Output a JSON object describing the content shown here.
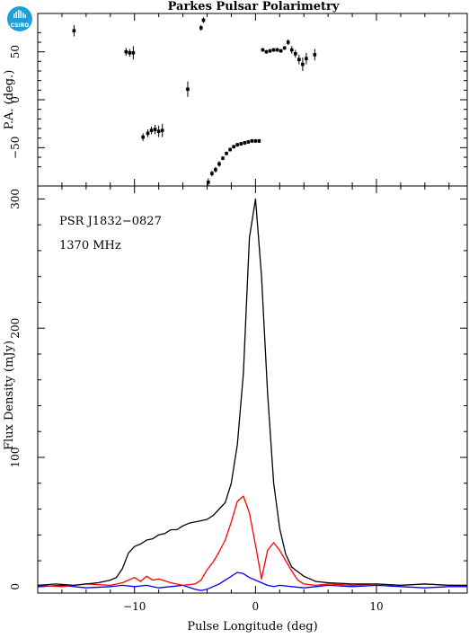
{
  "title": "Parkes Pulsar Polarimetry",
  "logo_text": "CSIRO",
  "colors": {
    "total_intensity": "#000000",
    "linear_polarization": "#ff0000",
    "circular_polarization": "#0000ff",
    "logo": "#1e9fd6"
  },
  "chart_data": [
    {
      "type": "scatter",
      "ylabel": "P.A. (deg.)",
      "xlim": [
        -18,
        17.5
      ],
      "ylim": [
        -90,
        90
      ],
      "yticks": [
        50,
        0,
        -50
      ],
      "ytick_labels": [
        "50",
        "0",
        "−50"
      ],
      "grid": false,
      "x": [
        -15,
        -10.7,
        -10.4,
        -10.1,
        -9.3,
        -8.9,
        -8.6,
        -8.3,
        -8.0,
        -7.7,
        -5.6,
        -4.5,
        -4.3,
        -3.9,
        -3.6,
        -3.3,
        -3.0,
        -2.7,
        -2.4,
        -2.1,
        -1.8,
        -1.5,
        -1.2,
        -0.9,
        -0.6,
        -0.3,
        0.0,
        0.3,
        0.6,
        0.9,
        1.2,
        1.5,
        1.8,
        2.1,
        2.4,
        2.7,
        3.0,
        3.3,
        3.6,
        3.9,
        4.2,
        4.9
      ],
      "y": [
        72,
        50,
        49,
        49,
        -39,
        -35,
        -32,
        -31,
        -33,
        -32,
        11,
        75,
        83,
        -86,
        -77,
        -73,
        -67,
        -61,
        -56,
        -52,
        -49,
        -47,
        -46,
        -45,
        -44,
        -43,
        -43,
        -43,
        52,
        50,
        51,
        52,
        52,
        51,
        54,
        60,
        52,
        48,
        42,
        37,
        43,
        47
      ],
      "yerr": [
        6,
        4,
        4,
        7,
        4,
        4,
        4,
        5,
        6,
        7,
        8,
        3,
        3,
        4,
        3,
        3,
        3,
        2,
        2,
        2,
        2,
        2,
        2,
        2,
        2,
        2,
        2,
        2,
        2,
        2,
        2,
        2,
        2,
        2,
        2,
        3,
        4,
        4,
        5,
        7,
        6,
        6
      ]
    },
    {
      "type": "line",
      "xlabel": "Pulse Longitude (deg)",
      "ylabel": "Flux Density (mJy)",
      "xlim": [
        -18,
        17.5
      ],
      "ylim": [
        -5,
        310
      ],
      "xticks": [
        -10,
        0,
        10
      ],
      "xtick_labels": [
        "−10",
        "0",
        "10"
      ],
      "yticks": [
        0,
        100,
        200,
        300
      ],
      "ytick_labels": [
        "0",
        "100",
        "200",
        "300"
      ],
      "annotations": [
        "PSR J1832−0827",
        "1370 MHz"
      ],
      "grid": false,
      "series": [
        {
          "color": "#000000",
          "x": [
            -18,
            -16.5,
            -15,
            -14,
            -13,
            -12,
            -11.5,
            -11,
            -10.5,
            -10,
            -9.5,
            -9,
            -8.5,
            -8,
            -7.5,
            -7,
            -6.5,
            -6,
            -5.5,
            -5,
            -4.5,
            -4,
            -3.5,
            -3,
            -2.5,
            -2,
            -1.5,
            -1,
            -0.5,
            0,
            0.5,
            1,
            1.5,
            2,
            2.5,
            3,
            4,
            5,
            6,
            8,
            10,
            12,
            14,
            16,
            17.5
          ],
          "y": [
            1,
            2,
            1,
            2,
            3,
            5,
            7,
            14,
            26,
            31,
            33,
            36,
            37,
            40,
            41,
            44,
            44,
            47,
            49,
            50,
            51,
            52,
            55,
            60,
            65,
            80,
            110,
            165,
            270,
            300,
            240,
            150,
            80,
            45,
            25,
            15,
            8,
            4,
            3,
            2,
            2,
            1,
            2,
            1,
            1
          ]
        },
        {
          "color": "#ff0000",
          "x": [
            -18,
            -16,
            -14,
            -12,
            -11,
            -10,
            -9.5,
            -9,
            -8.5,
            -8,
            -7,
            -6,
            -5,
            -4.5,
            -4,
            -3.5,
            -3,
            -2.5,
            -2,
            -1.5,
            -1,
            -0.5,
            0,
            0.5,
            1,
            1.5,
            2,
            2.5,
            3,
            3.5,
            4,
            5,
            6,
            8,
            10,
            12,
            14,
            16,
            17.5
          ],
          "y": [
            1,
            0,
            2,
            1,
            3,
            7,
            4,
            8,
            5,
            6,
            3,
            1,
            2,
            5,
            13,
            19,
            27,
            36,
            50,
            66,
            70,
            57,
            32,
            6,
            28,
            34,
            28,
            20,
            12,
            5,
            2,
            1,
            2,
            1,
            2,
            1,
            2,
            1,
            1
          ]
        },
        {
          "color": "#0000ff",
          "x": [
            -18,
            -16,
            -14,
            -12,
            -11,
            -10,
            -9,
            -8,
            -7,
            -6,
            -5,
            -4.5,
            -4,
            -3.5,
            -3,
            -2.5,
            -2,
            -1.5,
            -1,
            -0.5,
            0,
            0.5,
            1,
            1.5,
            2,
            3,
            4,
            5,
            6,
            8,
            10,
            12,
            14,
            16,
            17.5
          ],
          "y": [
            0,
            1,
            -1,
            0,
            1,
            0,
            1,
            -1,
            0,
            1,
            -2,
            -3,
            -2,
            0,
            2,
            5,
            8,
            11,
            10,
            7,
            5,
            3,
            1,
            0,
            1,
            0,
            -1,
            0,
            1,
            0,
            1,
            0,
            -1,
            0,
            0
          ]
        }
      ]
    }
  ]
}
